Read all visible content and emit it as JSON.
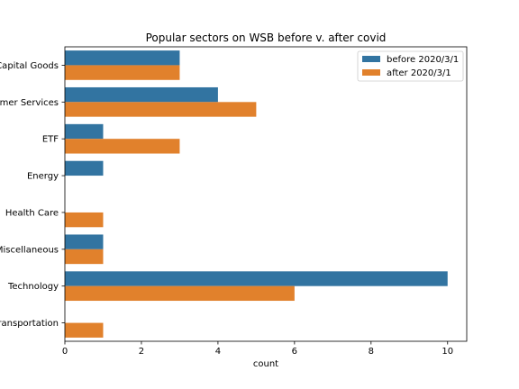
{
  "chart_data": {
    "type": "bar",
    "orientation": "horizontal",
    "title": "Popular sectors on WSB before v. after covid",
    "xlabel": "count",
    "ylabel": "",
    "categories": [
      "Capital Goods",
      "Consumer Services",
      "ETF",
      "Energy",
      "Health Care",
      "Miscellaneous",
      "Technology",
      "Transportation"
    ],
    "series": [
      {
        "name": "before 2020/3/1",
        "values": [
          3,
          4,
          1,
          1,
          0,
          1,
          10,
          0
        ],
        "color": "#3274a1"
      },
      {
        "name": "after 2020/3/1",
        "values": [
          3,
          5,
          3,
          0,
          1,
          1,
          6,
          1
        ],
        "color": "#e1812c"
      }
    ],
    "xlim": [
      0,
      10.5
    ],
    "xticks": [
      0,
      2,
      4,
      6,
      8,
      10
    ],
    "grid": false,
    "legend_position": "top-right"
  }
}
